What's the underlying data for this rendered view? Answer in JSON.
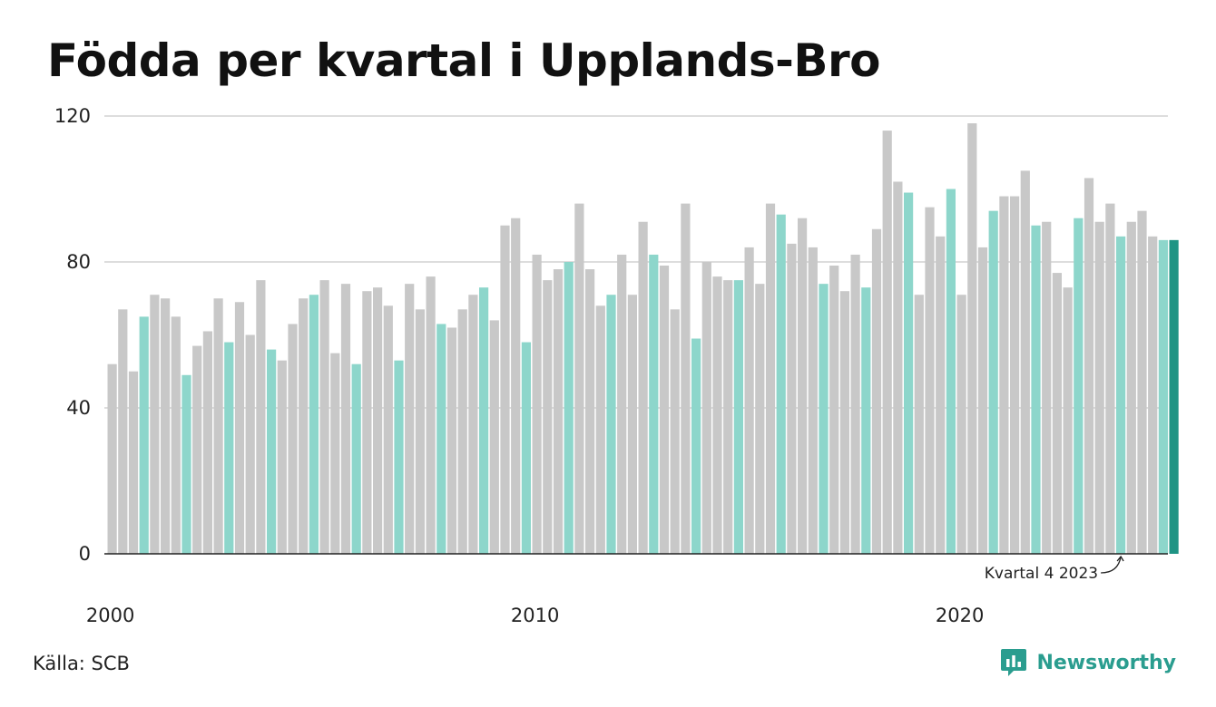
{
  "title": "Födda per kvartal i Upplands-Bro",
  "source": "Källa: SCB",
  "brand": {
    "name": "Newsworthy",
    "icon": "newsworthy-logo-icon",
    "color": "#2a9d8f"
  },
  "colors": {
    "regular": "#c8c8c8",
    "q4": "#8dd6cb",
    "latest": "#1f9484",
    "grid": "#dddddd",
    "axis": "#222222"
  },
  "chart_data": {
    "type": "bar",
    "title": "Födda per kvartal i Upplands-Bro",
    "xlabel": "",
    "ylabel": "",
    "ylim": [
      0,
      120
    ],
    "yticks": [
      0,
      40,
      80,
      120
    ],
    "xticks": [
      "2000",
      "2010",
      "2020"
    ],
    "grid": true,
    "start": {
      "year": 2000,
      "quarter": 1
    },
    "highlight": "Kvartal 4",
    "annotation": "Kvartal 4 2023",
    "values": [
      52,
      67,
      50,
      65,
      71,
      70,
      65,
      49,
      57,
      61,
      70,
      58,
      69,
      60,
      75,
      56,
      53,
      63,
      70,
      71,
      75,
      55,
      74,
      52,
      72,
      73,
      68,
      53,
      74,
      67,
      76,
      63,
      62,
      67,
      71,
      73,
      64,
      90,
      92,
      58,
      82,
      75,
      78,
      80,
      96,
      78,
      68,
      71,
      82,
      71,
      91,
      82,
      79,
      67,
      96,
      59,
      80,
      76,
      75,
      75,
      84,
      74,
      96,
      93,
      85,
      92,
      84,
      74,
      79,
      72,
      82,
      73,
      89,
      116,
      102,
      99,
      71,
      95,
      87,
      100,
      71,
      118,
      84,
      94,
      98,
      98,
      105,
      90,
      91,
      77,
      73,
      92,
      103,
      91,
      96,
      87,
      91,
      94,
      87,
      86,
      86
    ]
  }
}
